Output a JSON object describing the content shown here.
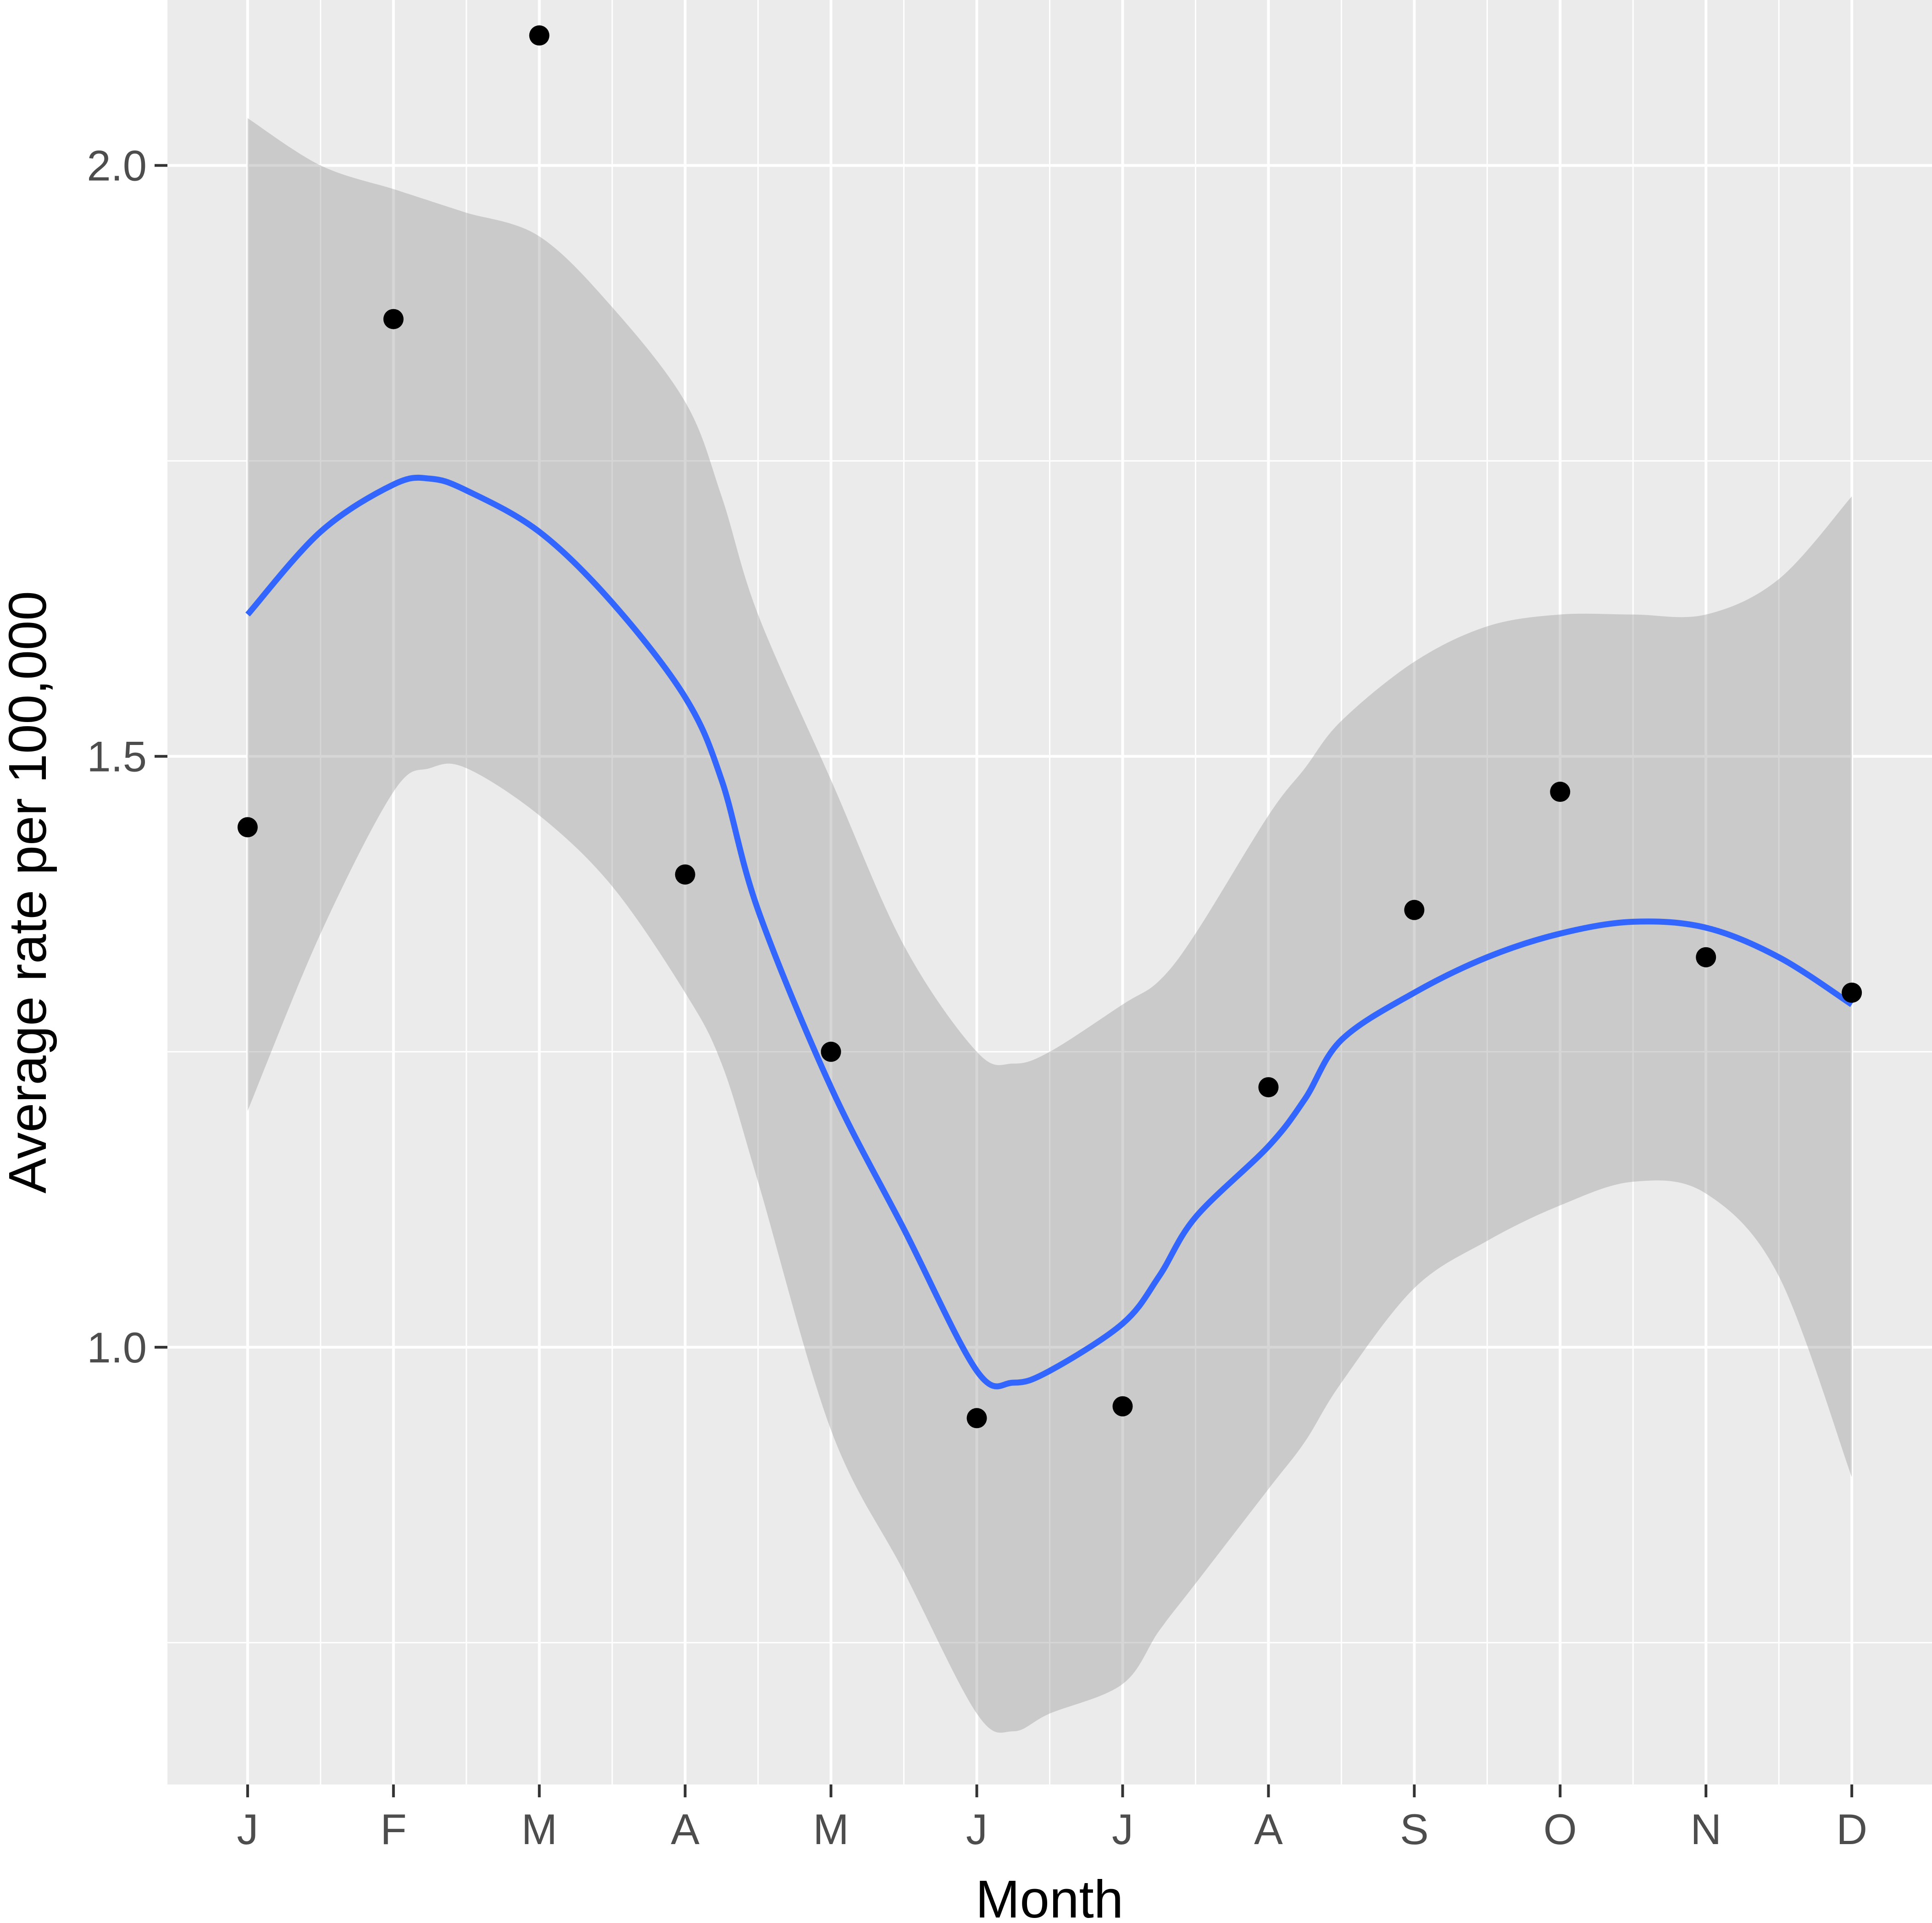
{
  "chart_data": {
    "type": "scatter",
    "title": "",
    "xlabel": "Month",
    "ylabel": "Average rate per 100,000",
    "categories": [
      "J",
      "F",
      "M",
      "A",
      "M",
      "J",
      "J",
      "A",
      "S",
      "O",
      "N",
      "D"
    ],
    "ylim": [
      0.63,
      2.14
    ],
    "y_ticks": [
      "1.0",
      "1.5",
      "2.0"
    ],
    "grid": true,
    "legend": "none",
    "series": [
      {
        "kind": "points",
        "color": "#000000",
        "values": [
          1.44,
          1.87,
          2.11,
          1.4,
          1.25,
          0.94,
          0.95,
          1.22,
          1.37,
          1.47,
          1.33,
          1.3
        ]
      },
      {
        "kind": "smooth-line",
        "color": "#3366ff",
        "x": [
          1,
          1.5,
          2,
          2.25,
          2.5,
          3,
          3.5,
          4,
          4.25,
          4.5,
          5,
          5.5,
          6,
          6.25,
          6.5,
          7,
          7.25,
          7.5,
          8,
          8.25,
          8.5,
          9,
          9.5,
          10,
          10.5,
          11,
          11.5,
          12
        ],
        "values": [
          1.62,
          1.69,
          1.73,
          1.735,
          1.725,
          1.69,
          1.63,
          1.55,
          1.48,
          1.37,
          1.22,
          1.1,
          0.98,
          0.97,
          0.98,
          1.02,
          1.06,
          1.11,
          1.17,
          1.21,
          1.26,
          1.3,
          1.33,
          1.35,
          1.36,
          1.355,
          1.33,
          1.29
        ]
      },
      {
        "kind": "confidence-band",
        "color": "#999999",
        "x": [
          1,
          1.5,
          2,
          2.25,
          2.5,
          3,
          3.5,
          4,
          4.25,
          4.5,
          5,
          5.5,
          6,
          6.25,
          6.5,
          7,
          7.25,
          7.5,
          8,
          8.25,
          8.5,
          9,
          9.5,
          10,
          10.5,
          11,
          11.5,
          12
        ],
        "upper": [
          2.04,
          2.0,
          1.98,
          1.97,
          1.96,
          1.94,
          1.88,
          1.8,
          1.72,
          1.62,
          1.48,
          1.34,
          1.25,
          1.24,
          1.25,
          1.29,
          1.31,
          1.35,
          1.45,
          1.49,
          1.53,
          1.58,
          1.61,
          1.62,
          1.62,
          1.62,
          1.65,
          1.72
        ],
        "lower": [
          1.2,
          1.35,
          1.47,
          1.49,
          1.49,
          1.45,
          1.39,
          1.3,
          1.24,
          1.14,
          0.93,
          0.81,
          0.69,
          0.675,
          0.69,
          0.715,
          0.76,
          0.8,
          0.88,
          0.92,
          0.97,
          1.05,
          1.09,
          1.12,
          1.14,
          1.13,
          1.06,
          0.89
        ]
      }
    ]
  }
}
